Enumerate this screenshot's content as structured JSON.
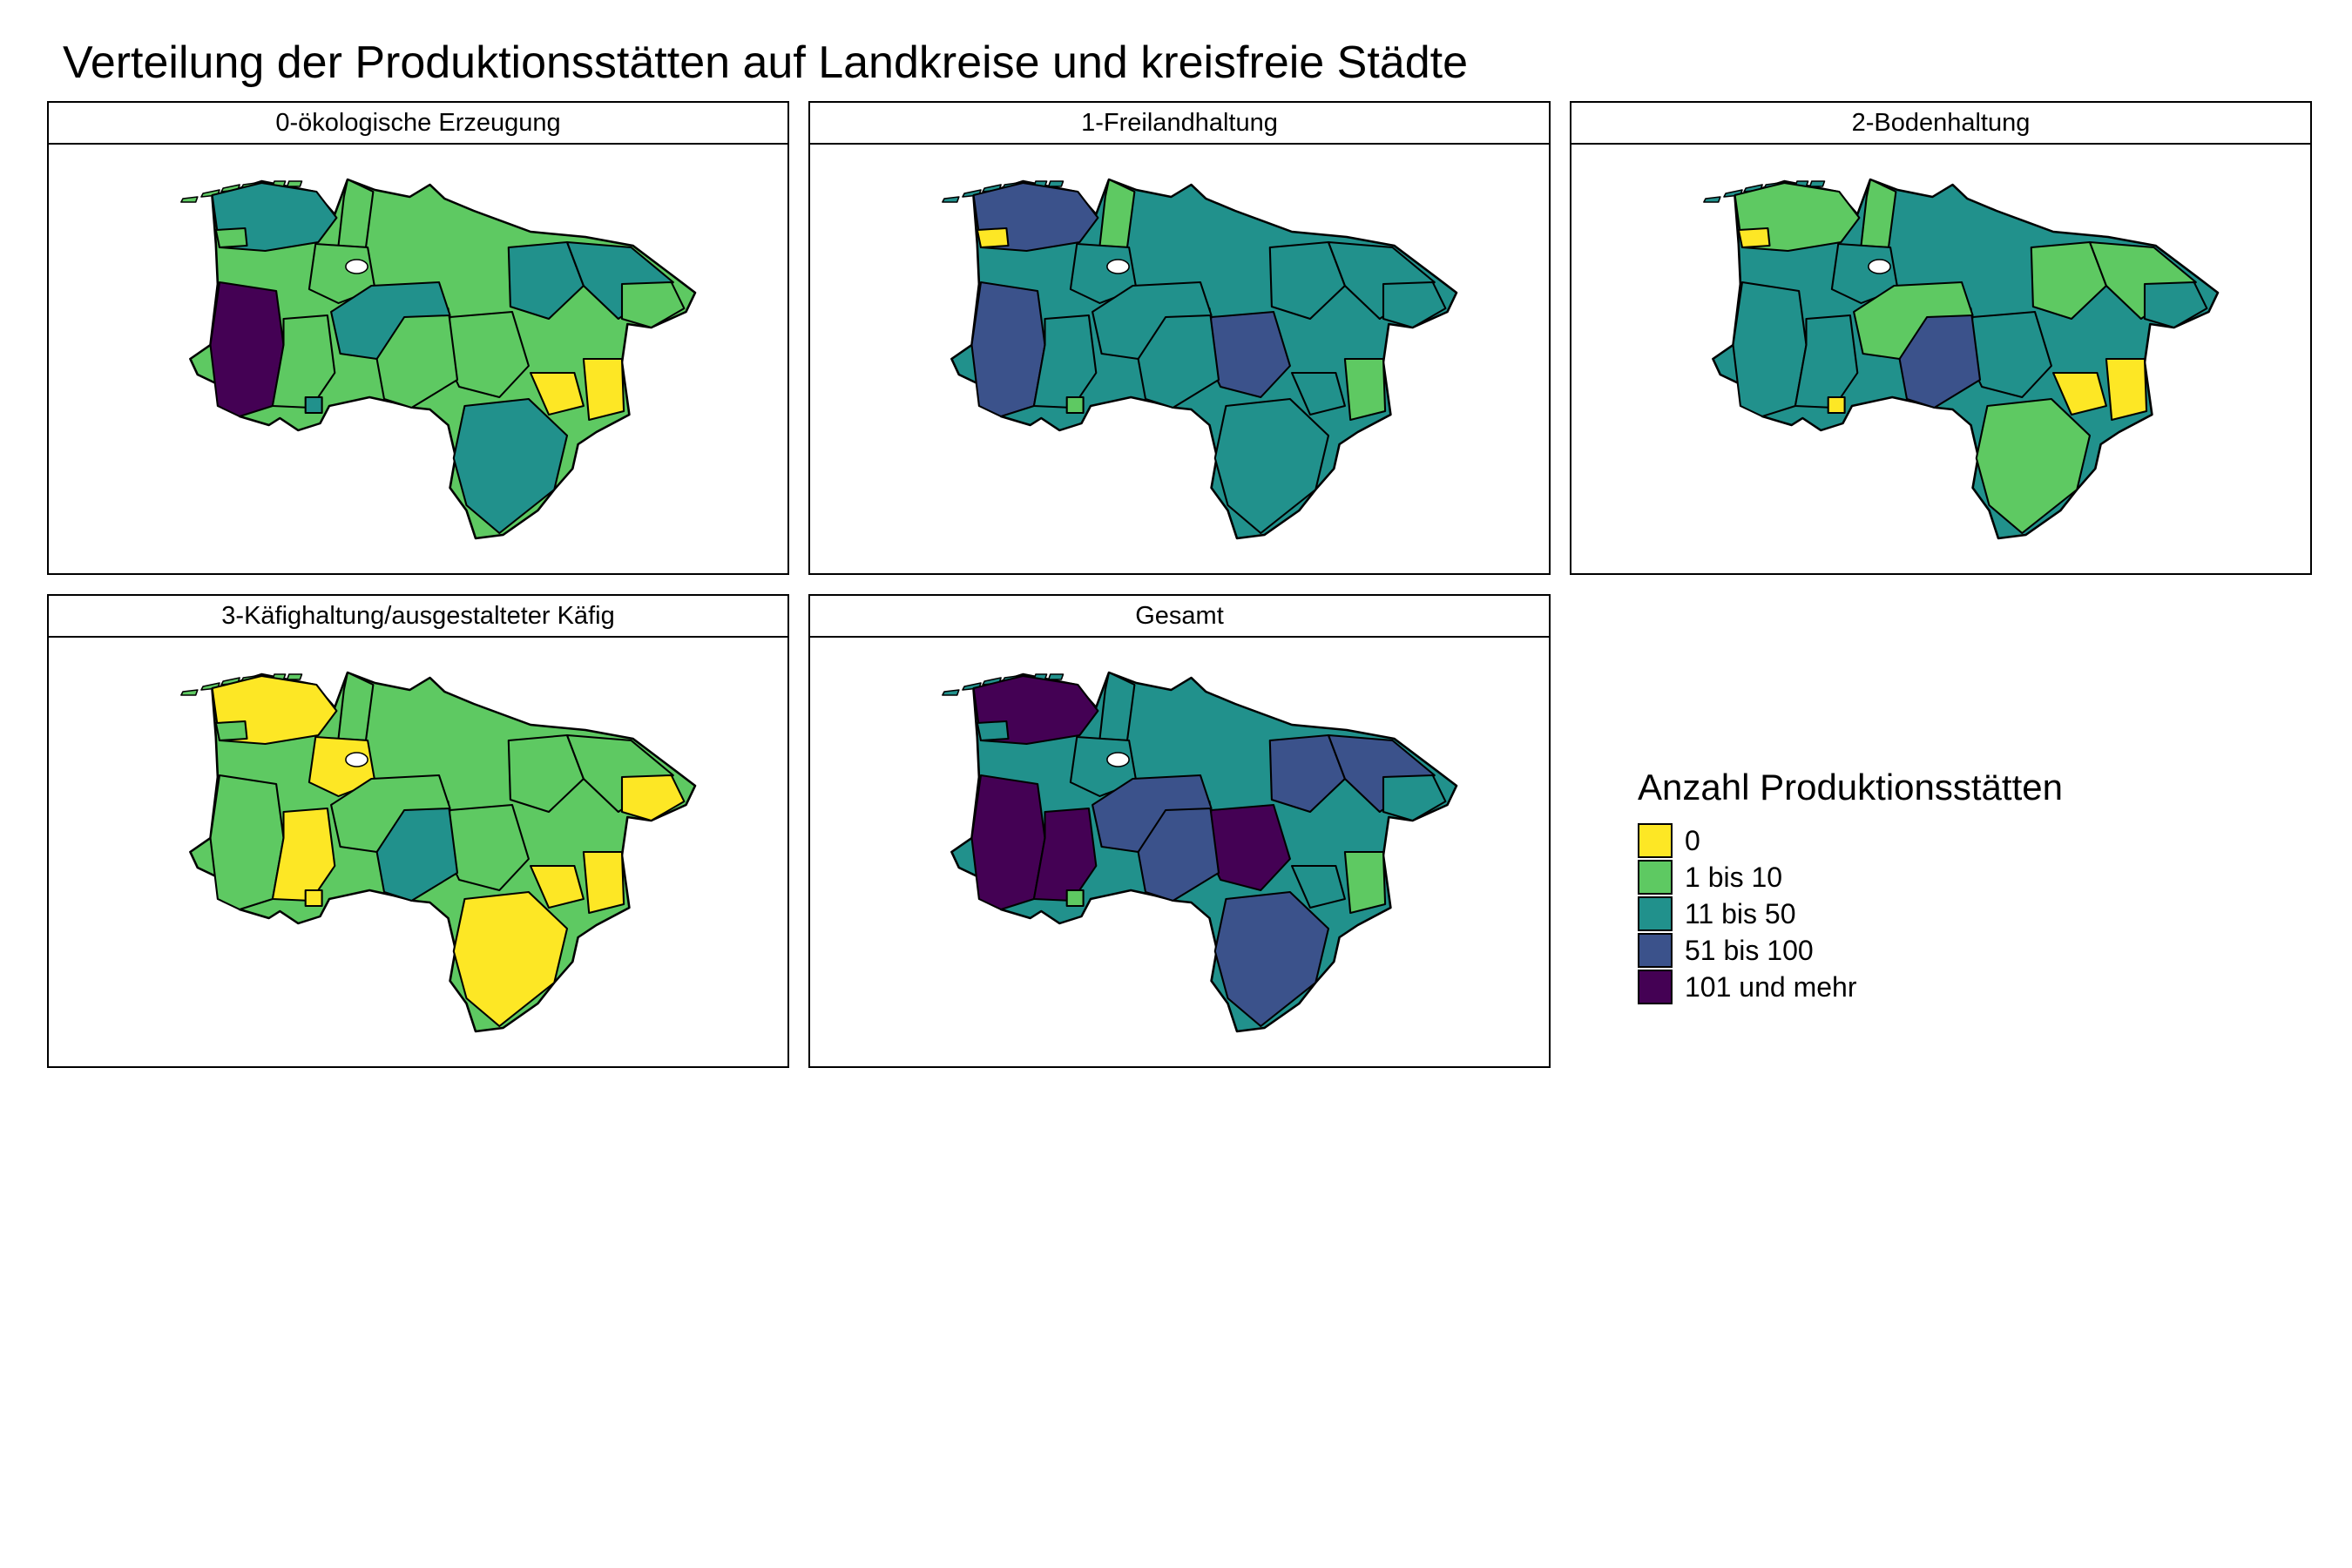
{
  "title": "Verteilung der Produktionsstätten auf Landkreise und kreisfreie Städte",
  "legend": {
    "title": "Anzahl Produktionsstätten",
    "classes": [
      {
        "label": "0",
        "color": "#FDE725"
      },
      {
        "label": "1 bis 10",
        "color": "#5EC962"
      },
      {
        "label": "11 bis 50",
        "color": "#21918C"
      },
      {
        "label": "51 bis 100",
        "color": "#3B528B"
      },
      {
        "label": "101 und mehr",
        "color": "#440154"
      }
    ]
  },
  "panels": [
    {
      "label": "0-ökologische Erzeugung",
      "base": 1,
      "classes": {
        "west": 4,
        "north": 2,
        "e1": 2,
        "e2": 2,
        "cen": 2,
        "osnab": 2,
        "south": 2,
        "ost": 0,
        "ost2": 0,
        "olden": 1
      }
    },
    {
      "label": "1-Freilandhaltung",
      "base": 2,
      "classes": {
        "west": 3,
        "north": 3,
        "coast": 0,
        "nose": 1,
        "han": 3,
        "ost2": 1,
        "osnab": 1,
        "olden": 0
      }
    },
    {
      "label": "2-Bodenhaltung",
      "base": 2,
      "classes": {
        "south": 1,
        "cen": 1,
        "north": 1,
        "coast": 0,
        "nose": 1,
        "mid": 3,
        "olden": 0,
        "osnab": 0,
        "ost": 0,
        "ost2": 0,
        "e1": 1,
        "e2": 1
      }
    },
    {
      "label": "3-Käfighaltung/ausgestalteter Käfig",
      "base": 1,
      "classes": {
        "north": 0,
        "west": 1,
        "emsl": 0,
        "osnab": 0,
        "olden": 0,
        "lk_olden": 0,
        "mid": 2,
        "e3": 0,
        "south": 0,
        "ost": 0,
        "ost2": 0
      }
    },
    {
      "label": "Gesamt",
      "base": 2,
      "classes": {
        "west": 4,
        "emsl": 4,
        "north": 4,
        "han": 4,
        "mid": 3,
        "cen": 3,
        "e1": 3,
        "e2": 3,
        "south": 3,
        "ost2": 1,
        "osnab": 1
      }
    }
  ]
}
